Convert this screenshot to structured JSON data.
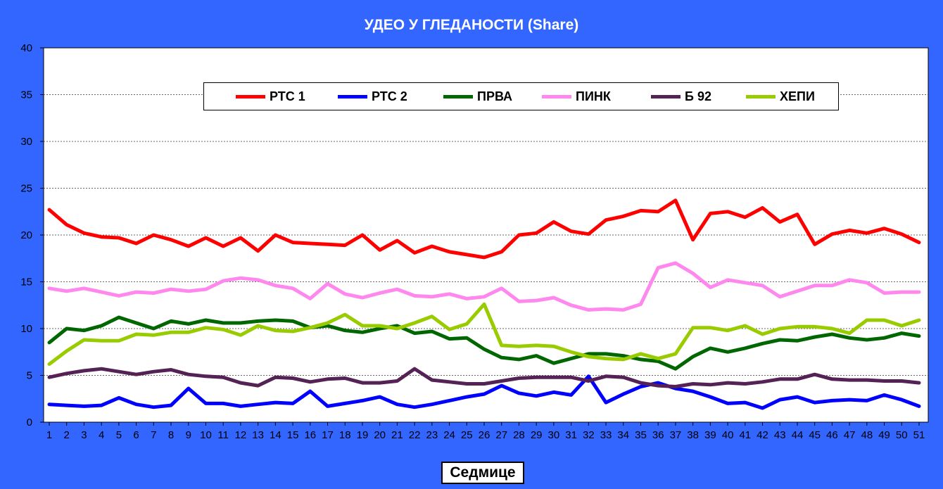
{
  "chart_data": {
    "type": "line",
    "title": "УДЕО У ГЛЕДАНОСТИ (Share)",
    "xlabel": "Седмице",
    "ylabel": "",
    "ylim": [
      0,
      40
    ],
    "yticks": [
      "0",
      "5",
      "10",
      "15",
      "20",
      "25",
      "30",
      "35",
      "40"
    ],
    "grid": true,
    "legend_position": "top-center",
    "x": [
      "1",
      "2",
      "3",
      "4",
      "5",
      "6",
      "7",
      "8",
      "9",
      "10",
      "11",
      "12",
      "13",
      "14",
      "15",
      "16",
      "17",
      "18",
      "19",
      "20",
      "21",
      "22",
      "23",
      "24",
      "25",
      "26",
      "27",
      "28",
      "29",
      "30",
      "31",
      "32",
      "33",
      "34",
      "35",
      "36",
      "37",
      "38",
      "39",
      "40",
      "41",
      "42",
      "43",
      "44",
      "45",
      "46",
      "47",
      "48",
      "49",
      "50",
      "51"
    ],
    "series": [
      {
        "name": "РТС 1",
        "color": "#ff0000",
        "values": [
          22.7,
          21.1,
          20.2,
          19.8,
          19.7,
          19.1,
          20.0,
          19.5,
          18.8,
          19.7,
          18.8,
          19.7,
          18.3,
          20.0,
          19.2,
          19.1,
          19.0,
          18.9,
          20.0,
          18.4,
          19.4,
          18.1,
          18.8,
          18.2,
          17.9,
          17.6,
          18.2,
          20.0,
          20.2,
          21.4,
          20.4,
          20.1,
          21.6,
          22.0,
          22.6,
          22.5,
          23.7,
          19.5,
          22.3,
          22.5,
          21.9,
          22.9,
          21.4,
          22.2,
          19.0,
          20.1,
          20.5,
          20.2,
          20.7,
          20.1,
          19.2
        ]
      },
      {
        "name": "РТС 2",
        "color": "#0000ff",
        "values": [
          1.9,
          1.8,
          1.7,
          1.8,
          2.6,
          1.9,
          1.6,
          1.8,
          3.6,
          2.0,
          2.0,
          1.7,
          1.9,
          2.1,
          2.0,
          3.3,
          1.7,
          2.0,
          2.3,
          2.7,
          1.9,
          1.6,
          1.9,
          2.3,
          2.7,
          3.0,
          3.9,
          3.1,
          2.8,
          3.2,
          2.9,
          4.9,
          2.1,
          3.0,
          3.8,
          4.2,
          3.6,
          3.3,
          2.7,
          2.0,
          2.1,
          1.5,
          2.4,
          2.7,
          2.1,
          2.3,
          2.4,
          2.3,
          2.9,
          2.4,
          1.7
        ]
      },
      {
        "name": "ПРВА",
        "color": "#006600",
        "values": [
          8.5,
          10.0,
          9.8,
          10.3,
          11.2,
          10.6,
          10.0,
          10.8,
          10.5,
          10.9,
          10.6,
          10.6,
          10.8,
          10.9,
          10.8,
          10.1,
          10.3,
          9.8,
          9.6,
          10.0,
          10.3,
          9.5,
          9.7,
          8.9,
          9.0,
          7.8,
          6.9,
          6.7,
          7.1,
          6.3,
          6.8,
          7.3,
          7.3,
          7.1,
          6.7,
          6.5,
          5.7,
          7.0,
          7.9,
          7.5,
          7.9,
          8.4,
          8.8,
          8.7,
          9.1,
          9.4,
          9.0,
          8.8,
          9.0,
          9.5,
          9.2
        ]
      },
      {
        "name": "ПИНК",
        "color": "#ff88ee",
        "values": [
          14.3,
          14.0,
          14.3,
          13.9,
          13.5,
          13.9,
          13.8,
          14.2,
          14.0,
          14.2,
          15.1,
          15.4,
          15.2,
          14.6,
          14.3,
          13.2,
          14.8,
          13.7,
          13.3,
          13.8,
          14.2,
          13.5,
          13.4,
          13.7,
          13.2,
          13.4,
          14.3,
          12.9,
          13.0,
          13.3,
          12.5,
          12.0,
          12.1,
          12.0,
          12.6,
          16.5,
          17.0,
          15.9,
          14.4,
          15.2,
          14.9,
          14.6,
          13.4,
          14.0,
          14.6,
          14.6,
          15.2,
          14.9,
          13.8,
          13.9,
          13.9
        ]
      },
      {
        "name": "Б 92",
        "color": "#552255",
        "values": [
          4.8,
          5.2,
          5.5,
          5.7,
          5.4,
          5.1,
          5.4,
          5.6,
          5.1,
          4.9,
          4.8,
          4.2,
          3.9,
          4.8,
          4.7,
          4.3,
          4.6,
          4.7,
          4.2,
          4.2,
          4.4,
          5.7,
          4.5,
          4.3,
          4.1,
          4.1,
          4.4,
          4.7,
          4.8,
          4.8,
          4.8,
          4.4,
          4.9,
          4.8,
          4.2,
          3.9,
          3.8,
          4.1,
          4.0,
          4.2,
          4.1,
          4.3,
          4.6,
          4.6,
          5.1,
          4.6,
          4.5,
          4.5,
          4.4,
          4.4,
          4.2
        ]
      },
      {
        "name": "ХЕПИ",
        "color": "#99cc00",
        "values": [
          6.2,
          7.6,
          8.8,
          8.7,
          8.7,
          9.4,
          9.3,
          9.6,
          9.6,
          10.1,
          9.9,
          9.3,
          10.3,
          9.8,
          9.7,
          10.1,
          10.6,
          11.5,
          10.3,
          10.3,
          10.0,
          10.6,
          11.3,
          9.9,
          10.5,
          12.6,
          8.2,
          8.1,
          8.2,
          8.1,
          7.5,
          7.0,
          6.8,
          6.7,
          7.3,
          6.8,
          7.3,
          10.1,
          10.1,
          9.8,
          10.3,
          9.4,
          10.0,
          10.2,
          10.2,
          10.0,
          9.5,
          10.9,
          10.9,
          10.3,
          10.9
        ]
      }
    ]
  }
}
